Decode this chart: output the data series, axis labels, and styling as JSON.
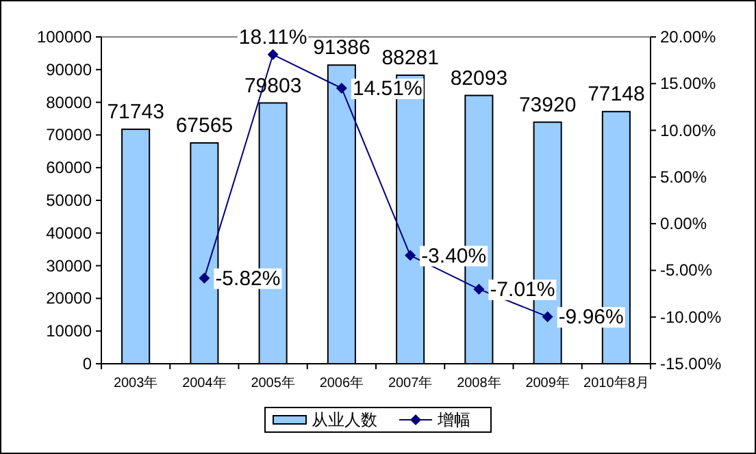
{
  "chart_data": {
    "type": "bar",
    "categories": [
      "2003年",
      "2004年",
      "2005年",
      "2006年",
      "2007年",
      "2008年",
      "2009年",
      "2010年8月"
    ],
    "series": [
      {
        "name": "从业人数",
        "color": "#99ccff",
        "values": [
          71743,
          67565,
          79803,
          91386,
          88281,
          82093,
          73920,
          77148
        ],
        "value_labels": [
          "71743",
          "67565",
          "79803",
          "91386",
          "88281",
          "82093",
          "73920",
          "77148"
        ]
      },
      {
        "name": "增幅",
        "type": "line",
        "axis": "y2",
        "color": "#000080",
        "marker": "diamond",
        "values": [
          null,
          -5.82,
          18.11,
          14.51,
          -3.4,
          -7.01,
          -9.96,
          null
        ],
        "value_labels": [
          null,
          "-5.82%",
          "18.11%",
          "14.51%",
          "-3.40%",
          "-7.01%",
          "-9.96%",
          null
        ]
      }
    ],
    "ylim": [
      0,
      100000
    ],
    "yticks": [
      0,
      10000,
      20000,
      30000,
      40000,
      50000,
      60000,
      70000,
      80000,
      90000,
      100000
    ],
    "y2lim": [
      -15,
      20
    ],
    "y2ticks": [
      {
        "value": -15,
        "label": "-15.00%"
      },
      {
        "value": -10,
        "label": "-10.00%"
      },
      {
        "value": -5,
        "label": "-5.00%"
      },
      {
        "value": 0,
        "label": "0.00%"
      },
      {
        "value": 5,
        "label": "5.00%"
      },
      {
        "value": 10,
        "label": "10.00%"
      },
      {
        "value": 15,
        "label": "15.00%"
      },
      {
        "value": 20,
        "label": "20.00%"
      }
    ],
    "legend": "bottom"
  }
}
